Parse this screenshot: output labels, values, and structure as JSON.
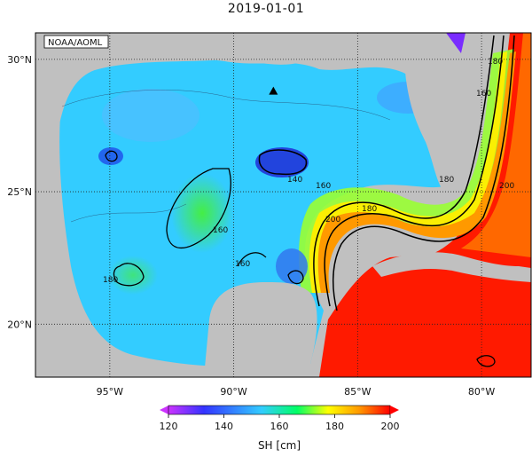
{
  "title": "2019-01-01",
  "credit": "NOAA/AOML",
  "map": {
    "lon_range": [
      -98,
      -78
    ],
    "lat_range": [
      18,
      31
    ],
    "lat_ticks": [
      {
        "value": 20,
        "label": "20°N"
      },
      {
        "value": 25,
        "label": "25°N"
      },
      {
        "value": 30,
        "label": "30°N"
      }
    ],
    "lon_ticks": [
      {
        "value": -95,
        "label": "95°W"
      },
      {
        "value": -90,
        "label": "90°W"
      },
      {
        "value": -85,
        "label": "85°W"
      },
      {
        "value": -80,
        "label": "80°W"
      }
    ],
    "marker": {
      "symbol": "triangle",
      "lon": -88.4,
      "lat": 28.8
    },
    "contour_labels": [
      "180",
      "160",
      "140",
      "160",
      "160",
      "180",
      "200",
      "180",
      "160",
      "180",
      "200"
    ]
  },
  "colorbar": {
    "label": "SH [cm]",
    "min": 120,
    "max": 200,
    "ticks": [
      "120",
      "140",
      "160",
      "180",
      "200"
    ],
    "colors": [
      "#cc33ff",
      "#3333ff",
      "#33ccff",
      "#00ff66",
      "#ffff00",
      "#ff9900",
      "#ff0000"
    ]
  },
  "colors": {
    "land": "#c0c0c0",
    "ocean_low": "#2266ee",
    "ocean_mid": "#33ccff",
    "loop_current": "#ff1a00"
  }
}
